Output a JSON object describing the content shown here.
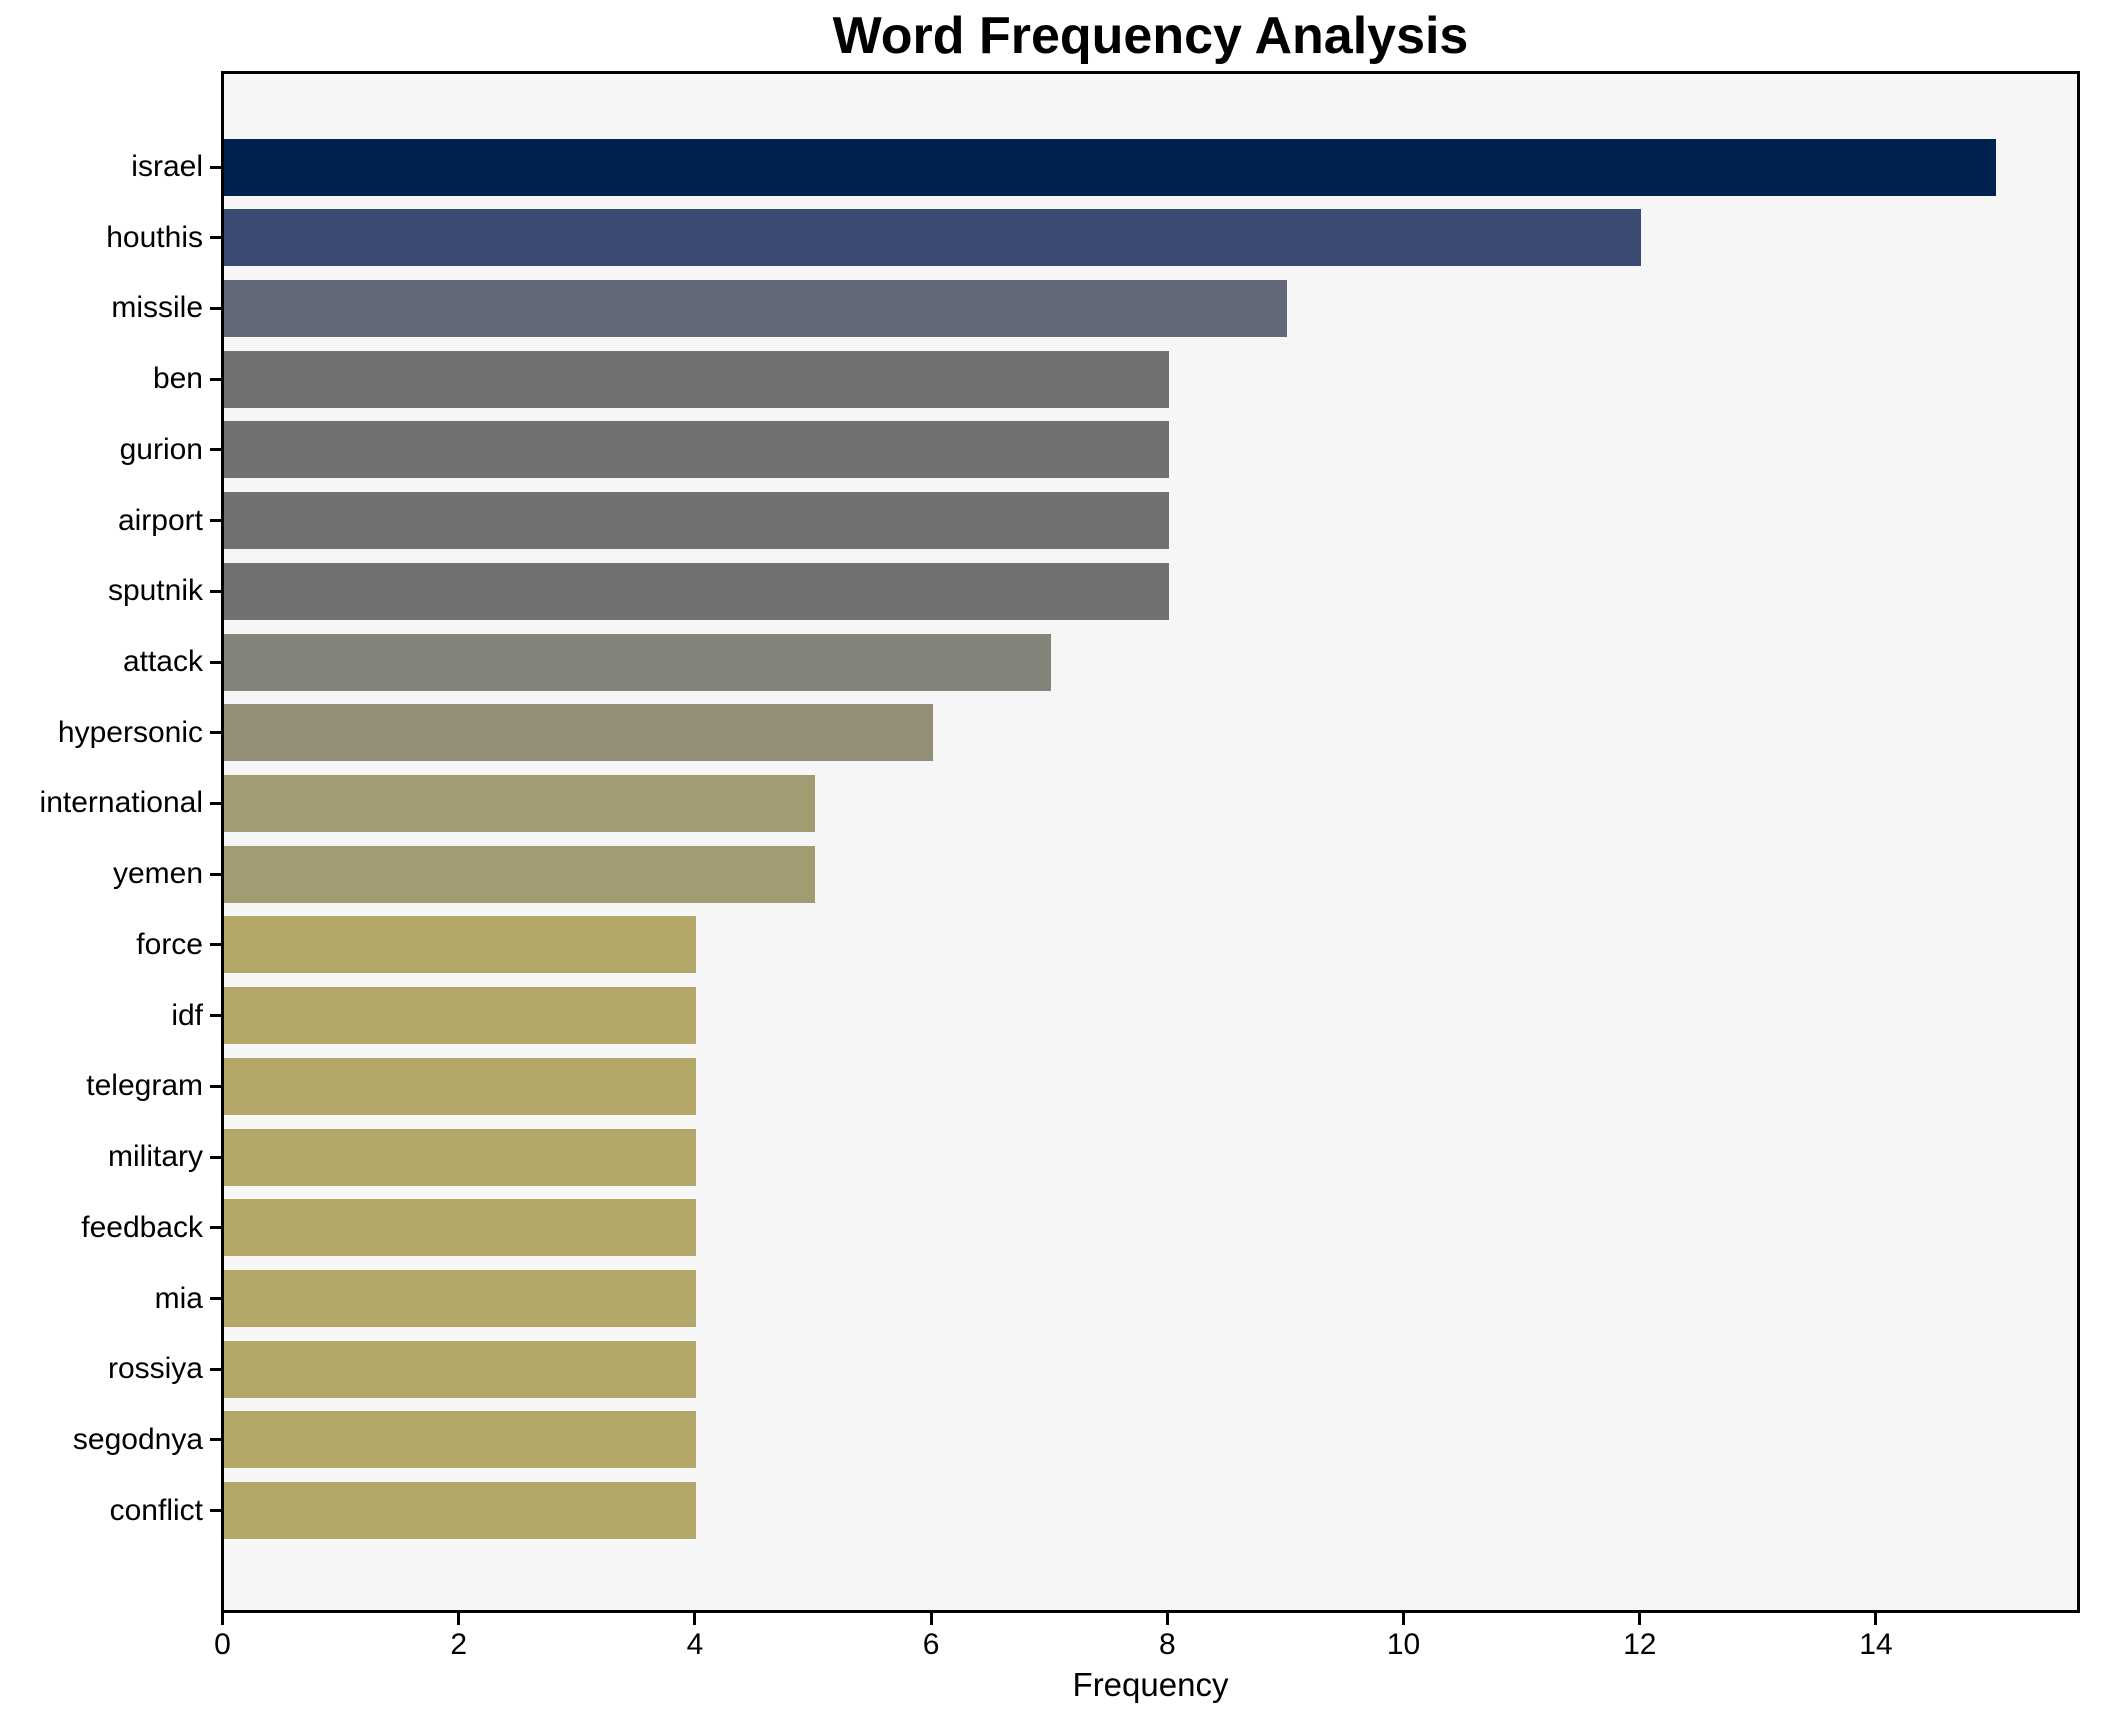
{
  "chart_data": {
    "type": "bar",
    "orientation": "horizontal",
    "title": "Word Frequency Analysis",
    "xlabel": "Frequency",
    "categories": [
      "israel",
      "houthis",
      "missile",
      "ben",
      "gurion",
      "airport",
      "sputnik",
      "attack",
      "hypersonic",
      "international",
      "yemen",
      "force",
      "idf",
      "telegram",
      "military",
      "feedback",
      "mia",
      "rossiya",
      "segodnya",
      "conflict"
    ],
    "values": [
      15,
      12,
      9,
      8,
      8,
      8,
      8,
      7,
      6,
      5,
      5,
      4,
      4,
      4,
      4,
      4,
      4,
      4,
      4,
      4
    ],
    "bar_colors": [
      "#00224e",
      "#3a4a73",
      "#626877",
      "#707173",
      "#707173",
      "#707173",
      "#707173",
      "#84837a",
      "#938f76",
      "#a39c72",
      "#a39c72",
      "#b3a76a",
      "#b3a76a",
      "#b3a76a",
      "#b3a76a",
      "#b3a76a",
      "#b3a76a",
      "#b3a76a",
      "#b3a76a",
      "#b3a76a"
    ],
    "xticks": [
      0,
      2,
      4,
      6,
      8,
      10,
      12,
      14
    ],
    "xlim": [
      0,
      15.74
    ],
    "grid": false,
    "legend": false
  },
  "colors": {
    "figure_bg": "#ffffff",
    "plot_bg": "#f7f6f6",
    "spine": "#000000",
    "text": "#000000"
  }
}
